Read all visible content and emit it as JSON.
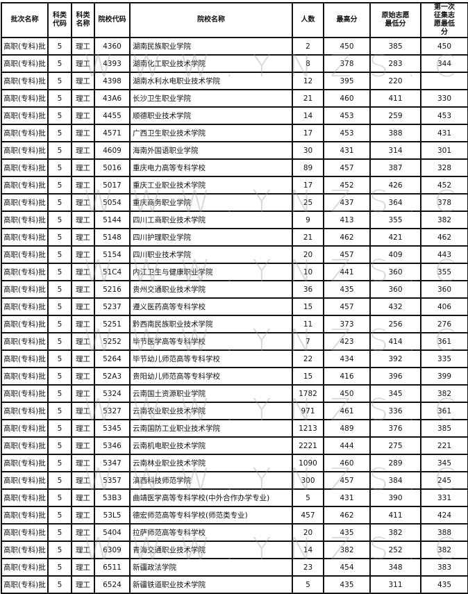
{
  "headers": {
    "batch": "批次名称",
    "subject_code": "科类代码",
    "subject_name": "科类名称",
    "school_code": "院校代码",
    "school_name": "院校名称",
    "count": "人数",
    "max_score": "最高分",
    "orig_min": "原始志愿最低分",
    "first_call_min": "第一次征集志愿最低分"
  },
  "watermark": "WWW.YNZS.CN",
  "rows": [
    [
      "高职(专科)批",
      "5",
      "理工",
      "4360",
      "湖南民族职业学院",
      "2",
      "450",
      "385",
      "450"
    ],
    [
      "高职(专科)批",
      "5",
      "理工",
      "4393",
      "湖南化工职业技术学院",
      "8",
      "378",
      "283",
      "344"
    ],
    [
      "高职(专科)批",
      "5",
      "理工",
      "4398",
      "湖南水利水电职业技术学院",
      "12",
      "395",
      "220",
      ""
    ],
    [
      "高职(专科)批",
      "5",
      "理工",
      "43A6",
      "长沙卫生职业学院",
      "21",
      "460",
      "411",
      "330"
    ],
    [
      "高职(专科)批",
      "5",
      "理工",
      "4455",
      "顺德职业技术学院",
      "14",
      "453",
      "259",
      "453"
    ],
    [
      "高职(专科)批",
      "5",
      "理工",
      "4571",
      "广西卫生职业技术学院",
      "17",
      "453",
      "388",
      "431"
    ],
    [
      "高职(专科)批",
      "5",
      "理工",
      "4609",
      "海南外国语职业学院",
      "30",
      "431",
      "314",
      "301"
    ],
    [
      "高职(专科)批",
      "5",
      "理工",
      "5016",
      "重庆电力高等专科学校",
      "89",
      "457",
      "387",
      "328"
    ],
    [
      "高职(专科)批",
      "5",
      "理工",
      "5017",
      "重庆工业职业技术学院",
      "17",
      "452",
      "426",
      "452"
    ],
    [
      "高职(专科)批",
      "5",
      "理工",
      "5054",
      "重庆商务职业学院",
      "25",
      "437",
      "364",
      "378"
    ],
    [
      "高职(专科)批",
      "5",
      "理工",
      "5144",
      "四川工商职业技术学院",
      "9",
      "413",
      "355",
      "382"
    ],
    [
      "高职(专科)批",
      "5",
      "理工",
      "5148",
      "四川护理职业学院",
      "21",
      "462",
      "421",
      "462"
    ],
    [
      "高职(专科)批",
      "5",
      "理工",
      "5154",
      "四川职业技术学院",
      "20",
      "457",
      "409",
      "443"
    ],
    [
      "高职(专科)批",
      "5",
      "理工",
      "51C4",
      "内江卫生与健康职业学院",
      "10",
      "441",
      "360",
      "355"
    ],
    [
      "高职(专科)批",
      "5",
      "理工",
      "5216",
      "贵州交通职业技术学院",
      "36",
      "435",
      "360",
      "360"
    ],
    [
      "高职(专科)批",
      "5",
      "理工",
      "5237",
      "遵义医药高等专科学校",
      "15",
      "457",
      "432",
      "406"
    ],
    [
      "高职(专科)批",
      "5",
      "理工",
      "5251",
      "黔西南民族职业技术学院",
      "11",
      "373",
      "256",
      "276"
    ],
    [
      "高职(专科)批",
      "5",
      "理工",
      "5252",
      "毕节医学高等专科学校",
      "7",
      "423",
      "414",
      "361"
    ],
    [
      "高职(专科)批",
      "5",
      "理工",
      "5264",
      "毕节幼儿师范高等专科学校",
      "22",
      "434",
      "392",
      "335"
    ],
    [
      "高职(专科)批",
      "5",
      "理工",
      "52A3",
      "贵阳幼儿师范高等专科学校",
      "15",
      "416",
      "396",
      "399"
    ],
    [
      "高职(专科)批",
      "5",
      "理工",
      "5324",
      "云南国土资源职业学院",
      "1782",
      "450",
      "345",
      "382"
    ],
    [
      "高职(专科)批",
      "5",
      "理工",
      "5327",
      "云南农业职业技术学院",
      "971",
      "461",
      "336",
      "361"
    ],
    [
      "高职(专科)批",
      "5",
      "理工",
      "5345",
      "云南国防工业职业技术学院",
      "1213",
      "489",
      "376",
      "385"
    ],
    [
      "高职(专科)批",
      "5",
      "理工",
      "5346",
      "云南机电职业技术学院",
      "2221",
      "444",
      "275",
      "221"
    ],
    [
      "高职(专科)批",
      "5",
      "理工",
      "5347",
      "云南林业职业技术学院",
      "1090",
      "460",
      "289",
      "345"
    ],
    [
      "高职(专科)批",
      "5",
      "理工",
      "5357",
      "滇西科技师范学院",
      "300",
      "457",
      "384",
      "245"
    ],
    [
      "高职(专科)批",
      "5",
      "理工",
      "53B3",
      "曲靖医学高等专科学校(中外合作办学专业)",
      "5",
      "431",
      "390",
      "331"
    ],
    [
      "高职(专科)批",
      "5",
      "理工",
      "53L5",
      "德宏师范高等专科学校(师范类专业)",
      "457",
      "462",
      "411",
      "424"
    ],
    [
      "高职(专科)批",
      "5",
      "理工",
      "5404",
      "拉萨师范高等专科学校",
      "20",
      "435",
      "382",
      "388"
    ],
    [
      "高职(专科)批",
      "5",
      "理工",
      "6309",
      "青海交通职业技术学院",
      "14",
      "382",
      "252",
      "382"
    ],
    [
      "高职(专科)批",
      "5",
      "理工",
      "6511",
      "新疆政法学院",
      "23",
      "454",
      "348",
      "383"
    ],
    [
      "高职(专科)批",
      "5",
      "理工",
      "6524",
      "新疆铁道职业技术学院",
      "5",
      "435",
      "311",
      "435"
    ]
  ]
}
